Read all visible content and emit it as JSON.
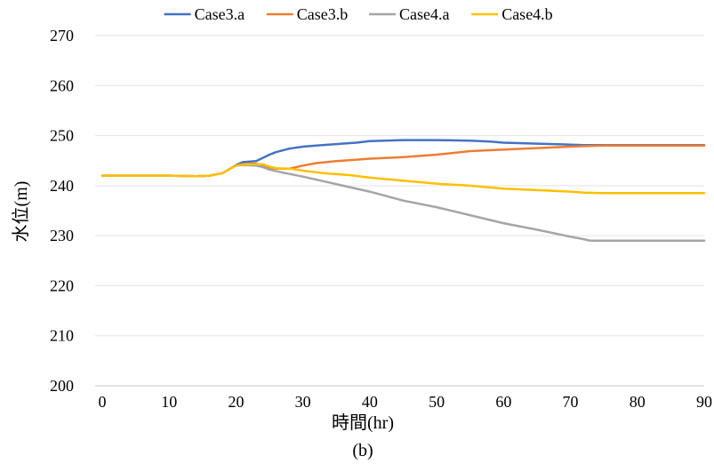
{
  "chart_data": {
    "type": "line",
    "title": "",
    "xlabel": "時間(hr)",
    "ylabel": "水位(m)",
    "caption": "(b)",
    "xlim": [
      0,
      90
    ],
    "ylim": [
      200,
      270
    ],
    "xticks": [
      0,
      10,
      20,
      30,
      40,
      50,
      60,
      70,
      80,
      90
    ],
    "yticks": [
      200,
      210,
      220,
      230,
      240,
      250,
      260,
      270
    ],
    "grid": "horizontal",
    "legend_position": "top",
    "series": [
      {
        "name": "Case3.a",
        "color": "#4472C4",
        "x": [
          0,
          10,
          14,
          16,
          18,
          19,
          20,
          21,
          23,
          25,
          26,
          28,
          30,
          32,
          35,
          38,
          40,
          45,
          50,
          55,
          58,
          60,
          65,
          70,
          72,
          75,
          80,
          85,
          90
        ],
        "y": [
          242,
          242,
          241.9,
          242,
          242.5,
          243.3,
          244.1,
          244.7,
          244.9,
          246.2,
          246.7,
          247.4,
          247.8,
          248,
          248.3,
          248.6,
          248.9,
          249.1,
          249.1,
          249,
          248.8,
          248.6,
          248.4,
          248.2,
          248.1,
          248.1,
          248.1,
          248.1,
          248.1
        ]
      },
      {
        "name": "Case3.b",
        "color": "#ED7D31",
        "x": [
          0,
          10,
          14,
          16,
          18,
          19,
          20,
          21,
          23,
          24,
          25,
          26,
          28,
          30,
          32,
          35,
          40,
          45,
          50,
          55,
          60,
          65,
          70,
          72,
          75,
          80,
          85,
          90
        ],
        "y": [
          242,
          242,
          241.9,
          242,
          242.5,
          243.3,
          244,
          244.3,
          244.4,
          244.1,
          243.6,
          243.4,
          243.4,
          244,
          244.5,
          244.9,
          245.4,
          245.7,
          246.2,
          246.9,
          247.2,
          247.5,
          247.8,
          247.9,
          248,
          248,
          248,
          248
        ]
      },
      {
        "name": "Case4.a",
        "color": "#A5A5A5",
        "x": [
          0,
          10,
          14,
          16,
          18,
          19,
          20,
          21,
          23,
          24,
          25,
          27,
          30,
          35,
          40,
          45,
          50,
          55,
          60,
          65,
          70,
          72,
          73,
          75,
          80,
          85,
          90
        ],
        "y": [
          242,
          242,
          241.9,
          242,
          242.5,
          243.3,
          244,
          244.1,
          244,
          243.7,
          243.2,
          242.6,
          241.8,
          240.3,
          238.8,
          237,
          235.7,
          234.1,
          232.5,
          231.2,
          229.8,
          229.3,
          229,
          229,
          229,
          229,
          229
        ]
      },
      {
        "name": "Case4.b",
        "color": "#FFC000",
        "x": [
          0,
          10,
          14,
          16,
          18,
          19,
          20,
          21,
          23,
          24,
          25,
          26,
          28,
          30,
          33,
          37,
          40,
          45,
          50,
          55,
          60,
          65,
          70,
          72,
          75,
          80,
          85,
          90
        ],
        "y": [
          242,
          242,
          241.9,
          242,
          242.5,
          243.3,
          244,
          244.2,
          244.3,
          244.3,
          243.8,
          243.5,
          243.4,
          243,
          242.5,
          242.1,
          241.6,
          241,
          240.4,
          240,
          239.4,
          239.1,
          238.8,
          238.6,
          238.5,
          238.5,
          238.5,
          238.5
        ]
      }
    ]
  }
}
